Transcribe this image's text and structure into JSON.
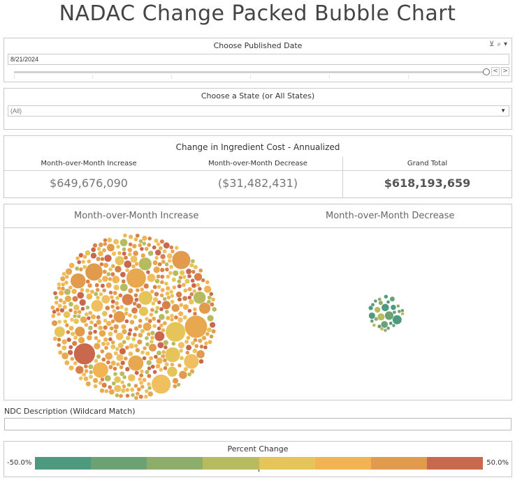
{
  "title": "NADAC Change Packed Bubble Chart",
  "date_filter": {
    "label": "Choose Published Date",
    "value": "8/21/2024",
    "icons": [
      "clear-filter-icon",
      "search-icon",
      "menu-caret-icon"
    ],
    "prev_label": "<",
    "next_label": ">"
  },
  "state_filter": {
    "label": "Choose a State (or All States)",
    "value": "(All)"
  },
  "summary": {
    "title": "Change in Ingredient Cost - Annualized",
    "columns": [
      {
        "header": "Month-over-Month Increase",
        "value": "$649,676,090"
      },
      {
        "header": "Month-over-Month Decrease",
        "value": "($31,482,431)"
      },
      {
        "header": "Grand Total",
        "value": "$618,193,659"
      }
    ]
  },
  "bubble_chart": {
    "increase_label": "Month-over-Month Increase",
    "decrease_label": "Month-over-Month Decrease"
  },
  "ndc": {
    "label": "NDC Description (Wildcard Match)",
    "value": ""
  },
  "legend": {
    "title": "Percent Change",
    "min_label": "-50.0%",
    "max_label": "50.0%",
    "colors": [
      "#4e9a7f",
      "#6aa274",
      "#8dad6a",
      "#b6bb5f",
      "#e5c45a",
      "#f2b452",
      "#e29a4d",
      "#c8694d"
    ]
  },
  "chart_data": {
    "type": "packed-bubble",
    "groups": [
      "Month-over-Month Increase",
      "Month-over-Month Decrease"
    ],
    "totals": {
      "increase": 649676090,
      "decrease": -31482431,
      "grand_total": 618193659
    },
    "color_scale": {
      "metric": "Percent Change",
      "min": -50.0,
      "max": 50.0
    }
  }
}
